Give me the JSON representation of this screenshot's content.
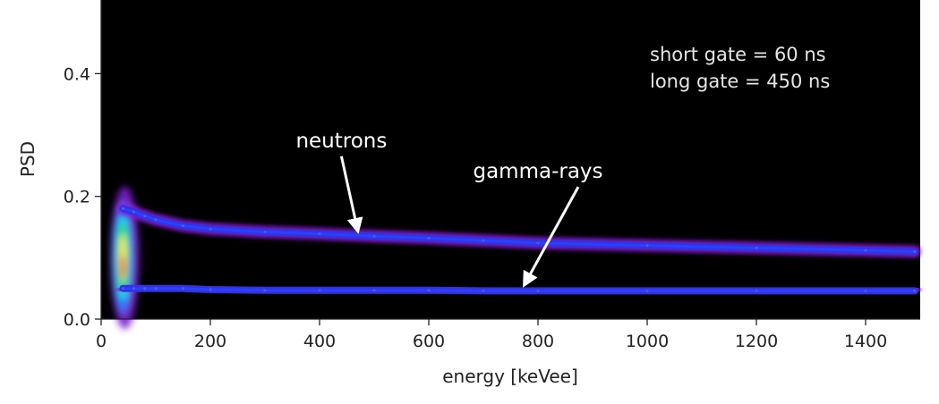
{
  "chart_data": {
    "type": "heatmap",
    "xlabel": "energy [keVee]",
    "ylabel": "PSD",
    "xlim": [
      0,
      1500
    ],
    "ylim": [
      0,
      0.52
    ],
    "x_ticks": [
      0,
      200,
      400,
      600,
      800,
      1000,
      1200,
      1400
    ],
    "x_tick_labels": [
      "0",
      "200",
      "400",
      "600",
      "800",
      "1000",
      "1200",
      "1400"
    ],
    "y_ticks": [
      0.0,
      0.2,
      0.4
    ],
    "y_tick_labels": [
      "0.0",
      "0.2",
      "0.4"
    ],
    "background_color": "#000000",
    "colormap": "gnuplot2",
    "info_lines": [
      "short gate = 60 ns",
      "long gate = 450 ns"
    ],
    "series": [
      {
        "name": "neutrons",
        "x": [
          40,
          60,
          80,
          100,
          150,
          200,
          300,
          400,
          500,
          600,
          700,
          800,
          1000,
          1200,
          1400,
          1490
        ],
        "y": [
          0.18,
          0.175,
          0.168,
          0.162,
          0.152,
          0.147,
          0.142,
          0.139,
          0.135,
          0.132,
          0.128,
          0.124,
          0.12,
          0.116,
          0.112,
          0.11
        ]
      },
      {
        "name": "gamma-rays",
        "x": [
          40,
          60,
          80,
          100,
          150,
          200,
          300,
          400,
          500,
          600,
          700,
          800,
          1000,
          1200,
          1400,
          1490
        ],
        "y": [
          0.05,
          0.05,
          0.05,
          0.05,
          0.05,
          0.048,
          0.047,
          0.047,
          0.047,
          0.047,
          0.046,
          0.046,
          0.046,
          0.046,
          0.046,
          0.046
        ]
      }
    ],
    "annotations": [
      {
        "text": "neutrons",
        "text_at": [
          440,
          0.28
        ],
        "arrow_to": [
          470,
          0.135
        ]
      },
      {
        "text": "gamma-rays",
        "text_at": [
          800,
          0.23
        ],
        "arrow_to": [
          775,
          0.047
        ]
      }
    ]
  }
}
